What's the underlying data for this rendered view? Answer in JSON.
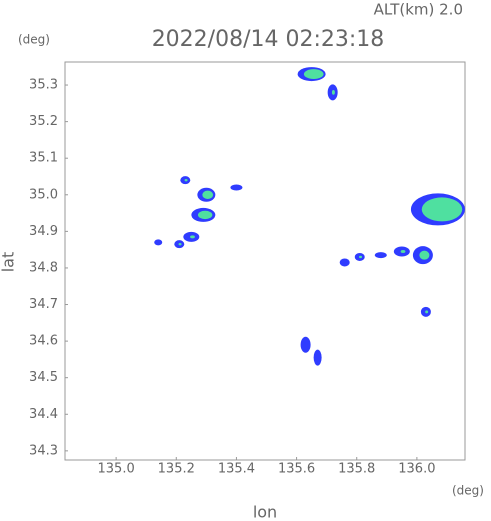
{
  "chart_data": {
    "type": "scatter",
    "title": "2022/08/14 02:23:18",
    "subtitle": "ALT(km) 2.0",
    "y_unit": "(deg)",
    "x_unit": "(deg)",
    "x_label": "lon",
    "y_label": "lat",
    "xlim": [
      134.83,
      136.16
    ],
    "ylim": [
      34.275,
      35.363
    ],
    "xticks": [
      {
        "value": 135,
        "label": "135.0"
      },
      135.2,
      135.4,
      135.6,
      135.8,
      {
        "value": 136,
        "label": "136.0"
      }
    ],
    "yticks": [
      34.3,
      34.4,
      34.5,
      34.6,
      34.7,
      34.8,
      34.9,
      {
        "value": 35,
        "label": "35.0"
      },
      35.1,
      35.2,
      35.3
    ],
    "color": "#2f3cff",
    "core_color": "#4fe0a0",
    "x": [
      135.65,
      135.72,
      135.3,
      135.29,
      135.23,
      135.4,
      135.25,
      135.21,
      135.14,
      136.07,
      136.02,
      135.95,
      135.88,
      135.81,
      135.76,
      136.03,
      135.63,
      135.67
    ],
    "y": [
      35.33,
      35.28,
      35.0,
      34.945,
      35.04,
      35.02,
      34.885,
      34.865,
      34.87,
      34.96,
      34.835,
      34.845,
      34.835,
      34.83,
      34.815,
      34.68,
      34.59,
      34.555
    ]
  }
}
